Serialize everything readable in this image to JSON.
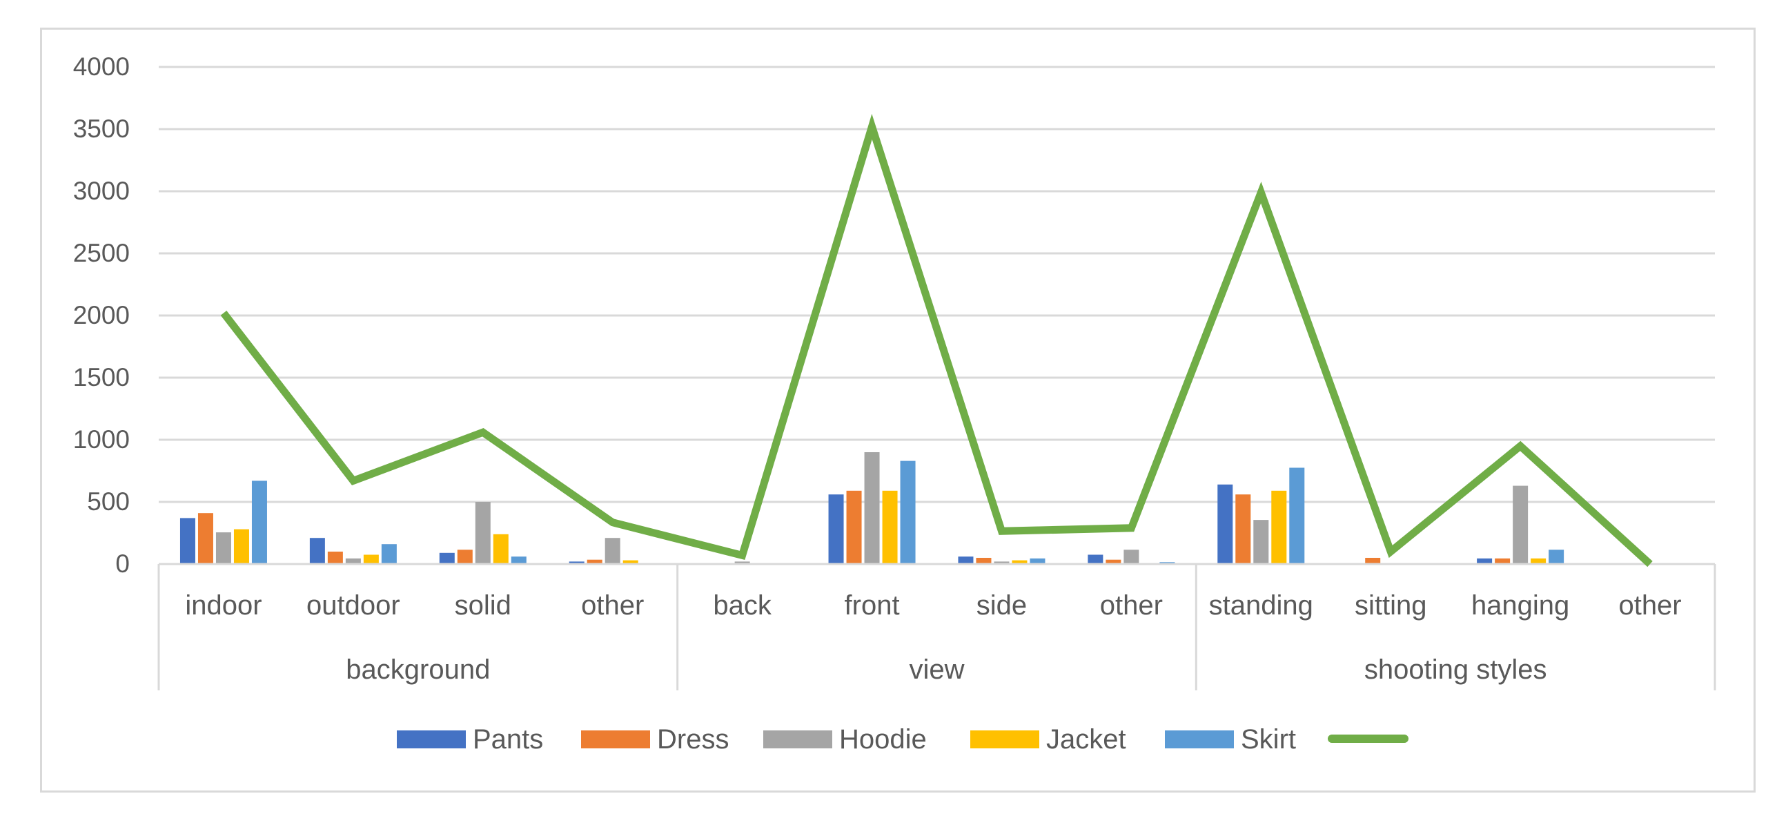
{
  "chart_data": {
    "type": "bar",
    "title": "",
    "xlabel": "",
    "ylabel": "",
    "ylim": [
      0,
      4000
    ],
    "y_ticks": [
      0,
      500,
      1000,
      1500,
      2000,
      2500,
      3000,
      3500,
      4000
    ],
    "grid": true,
    "legend_position": "bottom",
    "groups": [
      {
        "label": "background",
        "categories": [
          "indoor",
          "outdoor",
          "solid",
          "other"
        ]
      },
      {
        "label": "view",
        "categories": [
          "back",
          "front",
          "side",
          "other"
        ]
      },
      {
        "label": "shooting styles",
        "categories": [
          "standing",
          "sitting",
          "hanging",
          "other"
        ]
      }
    ],
    "categories": [
      "indoor",
      "outdoor",
      "solid",
      "other",
      "back",
      "front",
      "side",
      "other",
      "standing",
      "sitting",
      "hanging",
      "other"
    ],
    "series": [
      {
        "name": "Pants",
        "type": "bar",
        "color": "#4472c4",
        "values": [
          370,
          210,
          90,
          20,
          0,
          560,
          60,
          75,
          640,
          0,
          45,
          0
        ]
      },
      {
        "name": "Dress",
        "type": "bar",
        "color": "#ed7d31",
        "values": [
          410,
          100,
          115,
          35,
          0,
          590,
          50,
          35,
          560,
          50,
          45,
          0
        ]
      },
      {
        "name": "Hoodie",
        "type": "bar",
        "color": "#a5a5a5",
        "values": [
          255,
          45,
          500,
          210,
          20,
          900,
          20,
          115,
          355,
          0,
          630,
          0
        ]
      },
      {
        "name": "Jacket",
        "type": "bar",
        "color": "#ffc000",
        "values": [
          280,
          75,
          240,
          30,
          0,
          590,
          30,
          0,
          590,
          0,
          45,
          0
        ]
      },
      {
        "name": "Skirt",
        "type": "bar",
        "color": "#5b9bd5",
        "values": [
          670,
          160,
          60,
          0,
          0,
          830,
          45,
          15,
          775,
          0,
          115,
          0
        ]
      },
      {
        "name": "",
        "type": "line",
        "color": "#70ad47",
        "values": [
          2020,
          670,
          1060,
          335,
          70,
          3520,
          265,
          290,
          2990,
          100,
          950,
          0
        ]
      }
    ]
  }
}
